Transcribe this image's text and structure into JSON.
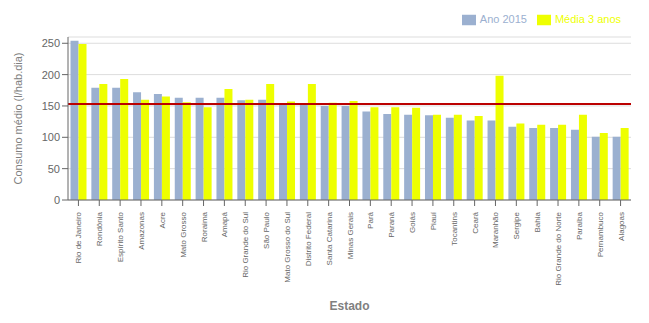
{
  "chart_data": {
    "type": "bar",
    "categories": [
      "Rio de Janeiro",
      "Rondônia",
      "Espírito Santo",
      "Amazonas",
      "Acre",
      "Mato Grosso",
      "Roraima",
      "Amapá",
      "Rio Grande do Sul",
      "São Paulo",
      "Mato Grosso do Sul",
      "Distrito Federal",
      "Santa Catarina",
      "Minas Gerais",
      "Pará",
      "Paraná",
      "Goiás",
      "Piauí",
      "Tocantins",
      "Ceará",
      "Maranhão",
      "Sergipe",
      "Bahia",
      "Rio Grande do Norte",
      "Paraíba",
      "Pernambuco",
      "Alagoas"
    ],
    "series": [
      {
        "name": "Ano 2015",
        "color": "#9BB0D0",
        "values": [
          254,
          179,
          179,
          172,
          169,
          163,
          163,
          163,
          159,
          160,
          153,
          153,
          150,
          150,
          141,
          137,
          136,
          135,
          131,
          127,
          127,
          117,
          115,
          115,
          112,
          101,
          101
        ]
      },
      {
        "name": "Média 3 anos",
        "color": "#EEFF00",
        "values": [
          249,
          185,
          193,
          160,
          165,
          156,
          148,
          177,
          160,
          185,
          157,
          185,
          155,
          158,
          148,
          148,
          147,
          136,
          136,
          134,
          198,
          122,
          120,
          120,
          136,
          107,
          115
        ]
      }
    ],
    "ref_line": {
      "value": 153,
      "color": "#BB0000"
    },
    "xlabel": "Estado",
    "ylabel": "Consumo médio (l/hab.dia)",
    "ylim": [
      0,
      260
    ],
    "yticks": [
      0,
      50,
      100,
      150,
      200,
      250
    ],
    "grid": true,
    "legend": "upper right"
  }
}
